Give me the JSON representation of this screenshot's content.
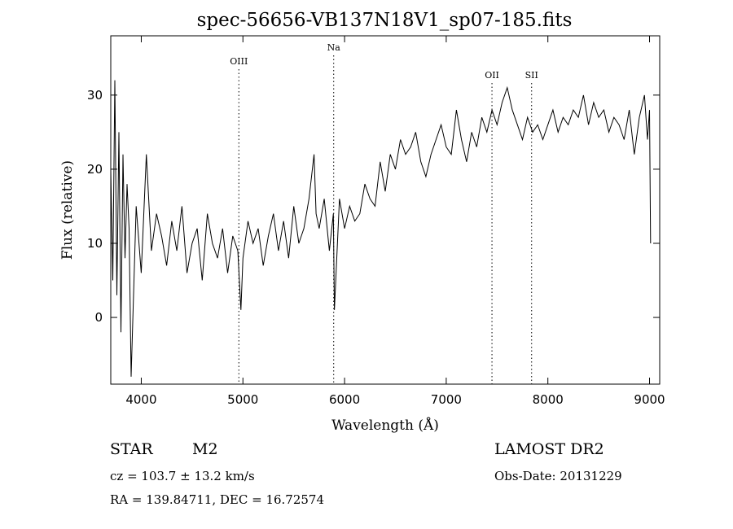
{
  "chart_data": {
    "type": "line",
    "title": "spec-56656-VB137N18V1_sp07-185.fits",
    "xlabel": "Wavelength (Å)",
    "ylabel": "Flux (relative)",
    "xlim": [
      3700,
      9100
    ],
    "ylim": [
      -9,
      38
    ],
    "xticks": [
      4000,
      5000,
      6000,
      7000,
      8000,
      9000
    ],
    "yticks": [
      0,
      10,
      20,
      30
    ],
    "grid": false,
    "series": [
      {
        "x": [
          3700,
          3720,
          3740,
          3760,
          3780,
          3800,
          3820,
          3840,
          3860,
          3880,
          3900,
          3950,
          4000,
          4050,
          4100,
          4150,
          4200,
          4250,
          4300,
          4350,
          4400,
          4450,
          4500,
          4550,
          4600,
          4650,
          4700,
          4750,
          4800,
          4850,
          4900,
          4950,
          4980,
          5000,
          5050,
          5100,
          5150,
          5200,
          5250,
          5300,
          5350,
          5400,
          5450,
          5500,
          5550,
          5600,
          5650,
          5700,
          5720,
          5750,
          5800,
          5850,
          5890,
          5900,
          5950,
          6000,
          6050,
          6100,
          6150,
          6200,
          6250,
          6300,
          6350,
          6400,
          6450,
          6500,
          6550,
          6600,
          6650,
          6700,
          6750,
          6800,
          6850,
          6900,
          6950,
          7000,
          7050,
          7100,
          7150,
          7200,
          7250,
          7300,
          7350,
          7400,
          7450,
          7500,
          7550,
          7600,
          7650,
          7700,
          7750,
          7800,
          7850,
          7900,
          7950,
          8000,
          8050,
          8100,
          8150,
          8200,
          8250,
          8300,
          8350,
          8400,
          8450,
          8500,
          8550,
          8600,
          8650,
          8700,
          8750,
          8800,
          8850,
          8900,
          8950,
          8980,
          9000,
          9010
        ],
        "y": [
          20,
          5,
          32,
          3,
          25,
          -2,
          22,
          8,
          18,
          12,
          -8,
          15,
          6,
          22,
          9,
          14,
          11,
          7,
          13,
          9,
          15,
          6,
          10,
          12,
          5,
          14,
          10,
          8,
          12,
          6,
          11,
          9,
          1,
          8,
          13,
          10,
          12,
          7,
          11,
          14,
          9,
          13,
          8,
          15,
          10,
          12,
          16,
          22,
          14,
          12,
          16,
          9,
          14,
          1,
          16,
          12,
          15,
          13,
          14,
          18,
          16,
          15,
          21,
          17,
          22,
          20,
          24,
          22,
          23,
          25,
          21,
          19,
          22,
          24,
          26,
          23,
          22,
          28,
          24,
          21,
          25,
          23,
          27,
          25,
          28,
          26,
          29,
          31,
          28,
          26,
          24,
          27,
          25,
          26,
          24,
          26,
          28,
          25,
          27,
          26,
          28,
          27,
          30,
          26,
          29,
          27,
          28,
          25,
          27,
          26,
          24,
          28,
          22,
          27,
          30,
          24,
          28,
          10
        ]
      }
    ],
    "annotations": [
      {
        "label": "OIII",
        "x": 4960
      },
      {
        "label": "Na",
        "x": 5893
      },
      {
        "label": "OII",
        "x": 7450
      },
      {
        "label": "SII",
        "x": 7840
      }
    ]
  },
  "footer": {
    "object_class": "STAR",
    "subclass": "M2",
    "survey": "LAMOST DR2",
    "redshift": "cz = 103.7 ± 13.2 km/s",
    "obs_date": "Obs-Date: 20131229",
    "coords": "RA = 139.84711, DEC =  16.72574"
  }
}
